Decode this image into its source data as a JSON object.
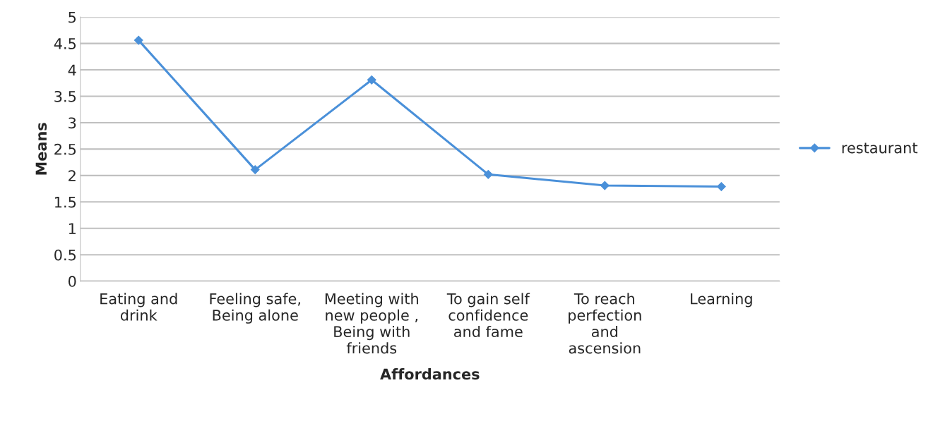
{
  "chart_data": {
    "type": "line",
    "xlabel": "Affordances",
    "ylabel": "Means",
    "categories": [
      "Eating and\ndrink",
      "Feeling safe,\nBeing alone",
      "Meeting with\nnew people ,\nBeing with\nfriends",
      "To gain self\nconfidence\nand fame",
      "To reach\nperfection\nand\nascension",
      "Learning"
    ],
    "series": [
      {
        "name": "restaurant",
        "color": "#4a90d9",
        "values": [
          4.56,
          2.11,
          3.81,
          2.02,
          1.81,
          1.79
        ]
      }
    ],
    "ylim": [
      0,
      5
    ],
    "yticks": [
      0,
      0.5,
      1,
      1.5,
      2,
      2.5,
      3,
      3.5,
      4,
      4.5,
      5
    ],
    "grid": "y",
    "legend": "right",
    "marker": "diamond",
    "line_style": "solid"
  }
}
